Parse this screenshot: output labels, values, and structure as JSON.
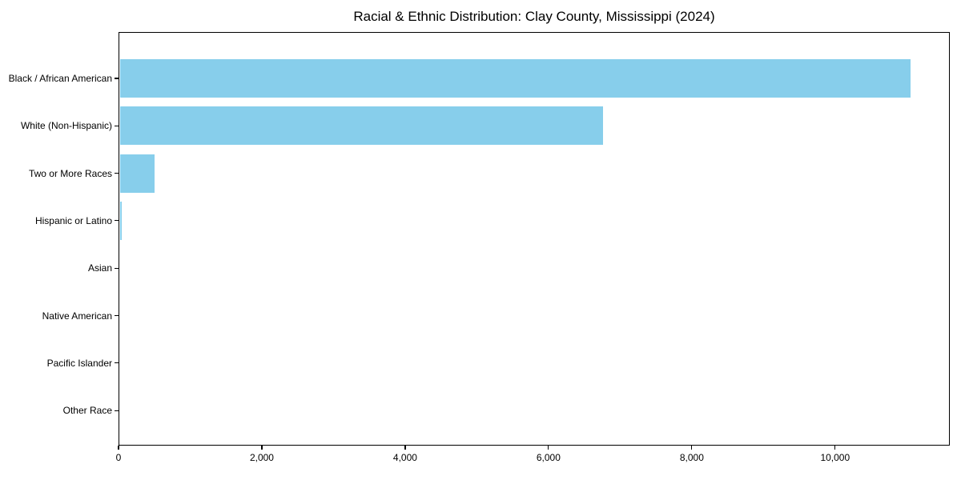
{
  "chart_data": {
    "type": "bar",
    "orientation": "horizontal",
    "title": "Racial & Ethnic Distribution: Clay County, Mississippi (2024)",
    "categories": [
      "Black / African American",
      "White (Non-Hispanic)",
      "Two or More Races",
      "Hispanic or Latino",
      "Asian",
      "Native American",
      "Pacific Islander",
      "Other Race"
    ],
    "values": [
      11050,
      6760,
      500,
      50,
      15,
      8,
      2,
      5
    ],
    "xlabel": "",
    "ylabel": "",
    "xlim": [
      0,
      11600
    ],
    "xticks": [
      {
        "value": 0,
        "label": "0"
      },
      {
        "value": 2000,
        "label": "2,000"
      },
      {
        "value": 4000,
        "label": "4,000"
      },
      {
        "value": 6000,
        "label": "6,000"
      },
      {
        "value": 8000,
        "label": "8,000"
      },
      {
        "value": 10000,
        "label": "10,000"
      }
    ],
    "grid": false,
    "legend": null,
    "bar_color": "#87CEEB",
    "background_color": "#FFFFFF",
    "spine_color": "#000000",
    "text_color": "#000000"
  }
}
